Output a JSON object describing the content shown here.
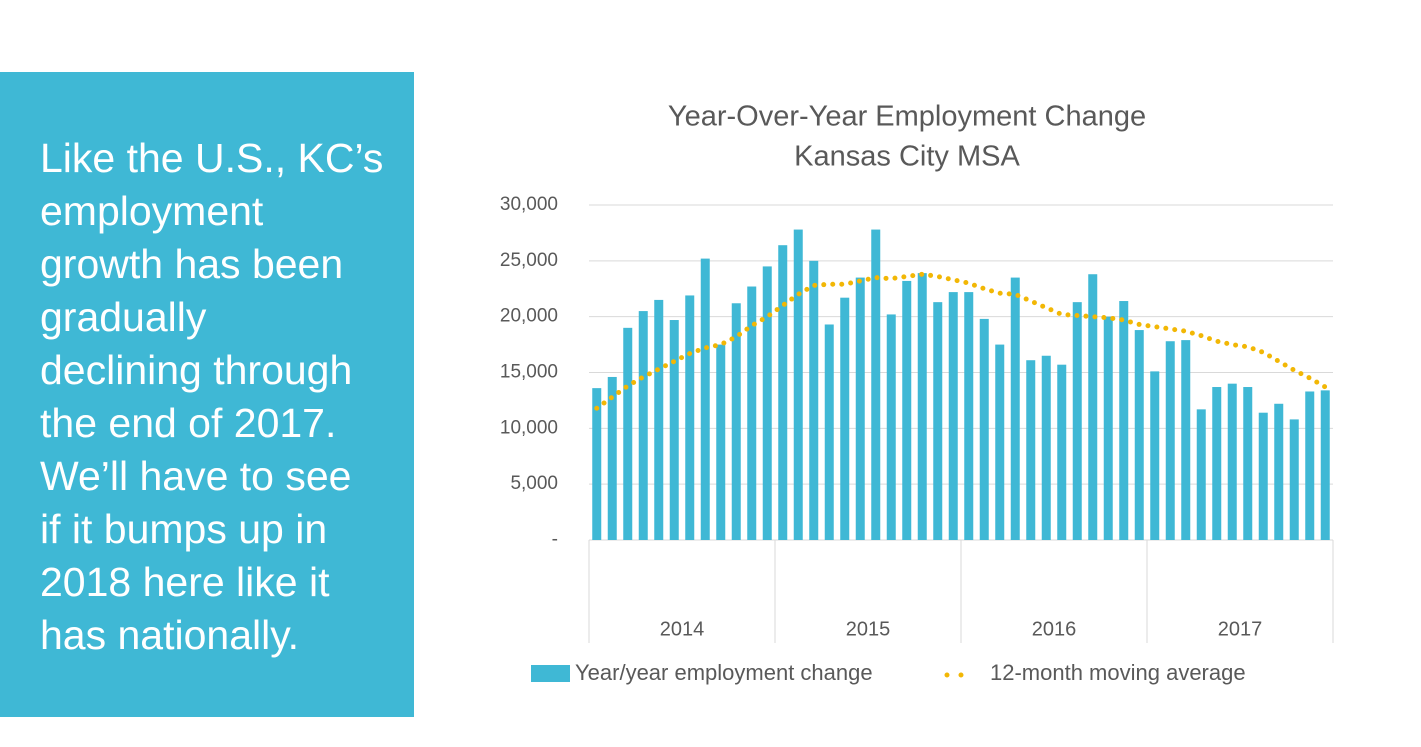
{
  "panel": {
    "lines": [
      "Like the U.S., KC’s",
      "employment",
      "growth has been",
      "gradually",
      "declining through",
      "the end of 2017.",
      "We’ll have to see",
      "if it bumps up in",
      "2018 here like it",
      "has nationally."
    ]
  },
  "chart_data": {
    "type": "bar",
    "title": "Year-Over-Year Employment Change",
    "subtitle": "Kansas City MSA",
    "categories": [
      null,
      null,
      null,
      null,
      null,
      null,
      null,
      null,
      null,
      null,
      null,
      null,
      null,
      null,
      null,
      null,
      null,
      null,
      null,
      null,
      null,
      null,
      null,
      null,
      null,
      null,
      null,
      null,
      null,
      null,
      null,
      null,
      null,
      null,
      null,
      null,
      null,
      null,
      null,
      null,
      null,
      null,
      null,
      null,
      null,
      null,
      null,
      null
    ],
    "category_groups": [
      "2014",
      "2015",
      "2016",
      "2017"
    ],
    "series": [
      {
        "name": "Year/year employment change",
        "type": "bar",
        "color": "#3fb8d5",
        "values": [
          13600,
          14600,
          19000,
          20500,
          21500,
          19700,
          21900,
          25200,
          17500,
          21200,
          22700,
          24500,
          26400,
          27800,
          25000,
          19300,
          21700,
          23500,
          27800,
          20200,
          23200,
          23900,
          21300,
          22200,
          22200,
          19800,
          17500,
          23500,
          16100,
          16500,
          15700,
          21300,
          23800,
          20000,
          21400,
          18800,
          15100,
          17800,
          17900,
          11700,
          13700,
          14000,
          13700,
          11400,
          12200,
          10800,
          13300,
          13400
        ]
      },
      {
        "name": "12-month moving average",
        "type": "line",
        "style": "dotted",
        "color": "#f2b705",
        "values": [
          11800,
          12800,
          13800,
          14600,
          15300,
          16000,
          16700,
          17200,
          17500,
          18200,
          19200,
          20000,
          21000,
          22000,
          22800,
          22900,
          22900,
          23200,
          23500,
          23400,
          23600,
          23800,
          23600,
          23300,
          23000,
          22500,
          22100,
          22000,
          21400,
          20800,
          20200,
          20100,
          20000,
          19900,
          19700,
          19300,
          19100,
          18900,
          18700,
          18300,
          17800,
          17500,
          17300,
          16800,
          16000,
          15200,
          14500,
          13700
        ]
      }
    ],
    "ylim": [
      0,
      30000
    ],
    "yticks": [
      {
        "value": 0,
        "label": "-"
      },
      {
        "value": 5000,
        "label": "5,000"
      },
      {
        "value": 10000,
        "label": "10,000"
      },
      {
        "value": 15000,
        "label": "15,000"
      },
      {
        "value": 20000,
        "label": "20,000"
      },
      {
        "value": 25000,
        "label": "25,000"
      },
      {
        "value": 30000,
        "label": "30,000"
      }
    ],
    "grid": true,
    "legend": "bottom"
  }
}
